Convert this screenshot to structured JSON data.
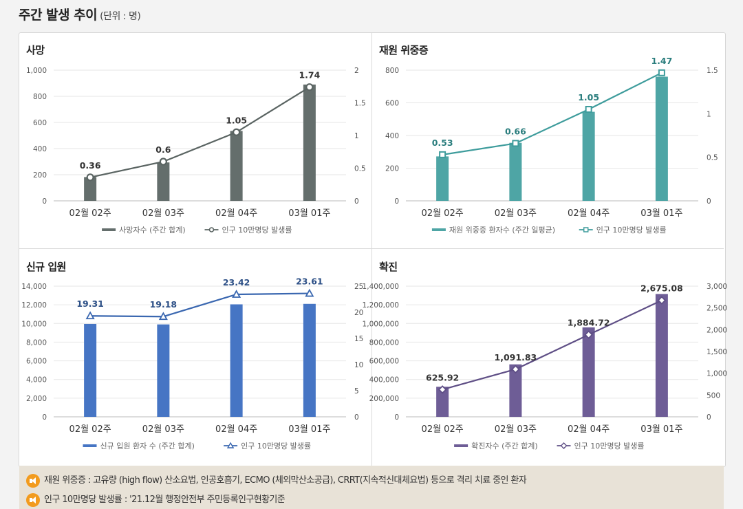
{
  "header": {
    "title": "주간 발생 추이",
    "unit": "(단위 : 명)"
  },
  "notes": [
    "재원 위중증 : 고유량 (high flow) 산소요법, 인공호흡기, ECMO (체외막산소공급), CRRT(지속적신대체요법) 등으로 격리 치료 중인 환자",
    "인구 10만명당 발생률 : '21.12월 행정안전부 주민등록인구현황기준"
  ],
  "chart_data": [
    {
      "id": "deaths",
      "type": "bar+line",
      "title": "사망",
      "categories": [
        "02월 02주",
        "02월 03주",
        "02월 04주",
        "03월 01주"
      ],
      "bar_series": {
        "name": "사망자수 (주간 합계)",
        "values": [
          182,
          294,
          535,
          890
        ],
        "color": "#646e6c"
      },
      "line_series": {
        "name": "인구 10만명당 발생률",
        "values": [
          0.36,
          0.6,
          1.05,
          1.74
        ],
        "labels": [
          "0.36",
          "0.6",
          "1.05",
          "1.74"
        ],
        "color": "#5a6462",
        "label_color": "#333333",
        "marker": "circle"
      },
      "y_left": {
        "min": 0,
        "max": 1000,
        "ticks": [
          0,
          200,
          400,
          600,
          800,
          1000
        ],
        "tick_labels": [
          "0",
          "200",
          "400",
          "600",
          "800",
          "1,000"
        ]
      },
      "y_right": {
        "min": 0,
        "max": 2,
        "ticks": [
          0,
          0.5,
          1,
          1.5,
          2
        ],
        "tick_labels": [
          "0",
          "0.5",
          "1",
          "1.5",
          "2"
        ]
      },
      "legend_position": "bottom"
    },
    {
      "id": "critical",
      "type": "bar+line",
      "title": "재원 위중증",
      "categories": [
        "02월 02주",
        "02월 03주",
        "02월 04주",
        "03월 01주"
      ],
      "bar_series": {
        "name": "재원 위중증 환자수 (주간 일평균)",
        "values": [
          272,
          355,
          545,
          760
        ],
        "color": "#4ea5a5"
      },
      "line_series": {
        "name": "인구 10만명당 발생률",
        "values": [
          0.53,
          0.66,
          1.05,
          1.47
        ],
        "labels": [
          "0.53",
          "0.66",
          "1.05",
          "1.47"
        ],
        "color": "#3e9c9c",
        "label_color": "#2a7d7d",
        "marker": "square"
      },
      "y_left": {
        "min": 0,
        "max": 800,
        "ticks": [
          0,
          200,
          400,
          600,
          800
        ],
        "tick_labels": [
          "0",
          "200",
          "400",
          "600",
          "800"
        ]
      },
      "y_right": {
        "min": 0,
        "max": 1.5,
        "ticks": [
          0,
          0.5,
          1,
          1.5
        ],
        "tick_labels": [
          "0",
          "0.5",
          "1",
          "1.5"
        ]
      },
      "legend_position": "bottom"
    },
    {
      "id": "hospitalized",
      "type": "bar+line",
      "title": "신규 입원",
      "categories": [
        "02월 02주",
        "02월 03주",
        "02월 04주",
        "03월 01주"
      ],
      "bar_series": {
        "name": "신규 입원 환자 수 (주간 합계)",
        "values": [
          9950,
          9900,
          12050,
          12100
        ],
        "color": "#4675c4"
      },
      "line_series": {
        "name": "인구 10만명당 발생률",
        "values": [
          19.31,
          19.18,
          23.42,
          23.61
        ],
        "labels": [
          "19.31",
          "19.18",
          "23.42",
          "23.61"
        ],
        "color": "#3a67b0",
        "label_color": "#2c4f86",
        "marker": "triangle"
      },
      "y_left": {
        "min": 0,
        "max": 14000,
        "ticks": [
          0,
          2000,
          4000,
          6000,
          8000,
          10000,
          12000,
          14000
        ],
        "tick_labels": [
          "0",
          "2,000",
          "4,000",
          "6,000",
          "8,000",
          "10,000",
          "12,000",
          "14,000"
        ]
      },
      "y_right": {
        "min": 0,
        "max": 25,
        "ticks": [
          0,
          5,
          10,
          15,
          20,
          25
        ],
        "tick_labels": [
          "0",
          "5",
          "10",
          "15",
          "20",
          "25"
        ]
      },
      "legend_position": "bottom"
    },
    {
      "id": "confirmed",
      "type": "bar+line",
      "title": "확진",
      "categories": [
        "02월 02주",
        "02월 03주",
        "02월 04주",
        "03월 01주"
      ],
      "bar_series": {
        "name": "확진자수 (주간 합계)",
        "values": [
          322000,
          562000,
          958000,
          1316000
        ],
        "color": "#6e5d96"
      },
      "line_series": {
        "name": "인구 10만명당 발생률",
        "values": [
          625.92,
          1091.83,
          1884.72,
          2675.08
        ],
        "labels": [
          "625.92",
          "1,091.83",
          "1,884.72",
          "2,675.08"
        ],
        "color": "#5f4f86",
        "label_color": "#333333",
        "marker": "diamond"
      },
      "y_left": {
        "min": 0,
        "max": 1400000,
        "ticks": [
          0,
          200000,
          400000,
          600000,
          800000,
          1000000,
          1200000,
          1400000
        ],
        "tick_labels": [
          "0",
          "200,000",
          "400,000",
          "600,000",
          "800,000",
          "1,000,000",
          "1,200,000",
          "1,400,000"
        ]
      },
      "y_right": {
        "min": 0,
        "max": 3000,
        "ticks": [
          0,
          500,
          1000,
          1500,
          2000,
          2500,
          3000
        ],
        "tick_labels": [
          "0",
          "500",
          "1,000",
          "1,500",
          "2,000",
          "2,500",
          "3,000"
        ]
      },
      "legend_position": "bottom"
    }
  ]
}
